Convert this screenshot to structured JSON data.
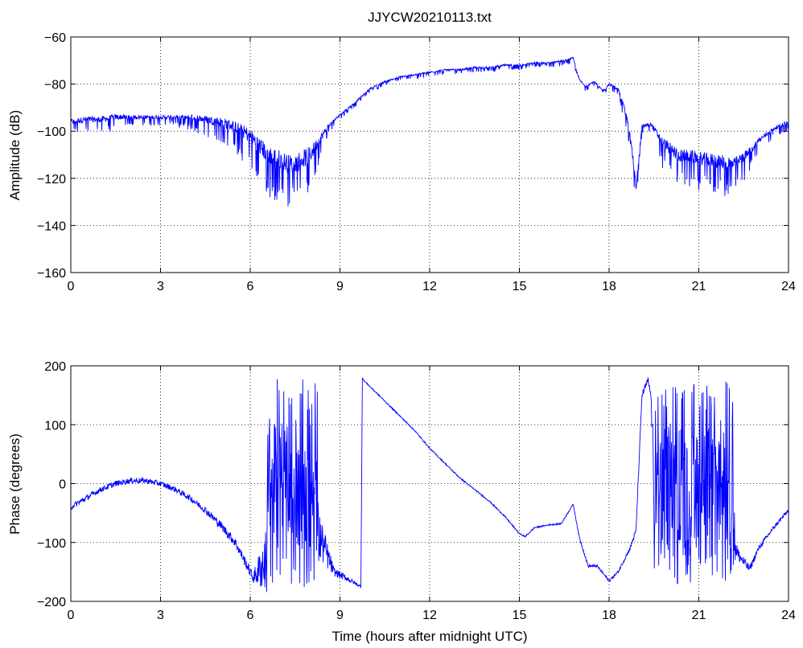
{
  "figure": {
    "title": "JJYCW20210113.txt",
    "line_color": "#0000ff",
    "grid": true,
    "grid_style": "dotted"
  },
  "chart_data": [
    {
      "type": "line",
      "id": "amplitude",
      "title": "JJYCW20210113.txt",
      "xlabel": "",
      "ylabel": "Amplitude (dB)",
      "xlim": [
        0,
        24
      ],
      "ylim": [
        -160,
        -60
      ],
      "xticks": [
        0,
        3,
        6,
        9,
        12,
        15,
        18,
        21,
        24
      ],
      "yticks": [
        -160,
        -140,
        -120,
        -100,
        -80,
        -60
      ],
      "ytick_labels": [
        "−160",
        "−140",
        "−120",
        "−100",
        "−80",
        "−60"
      ],
      "grid": true,
      "series": [
        {
          "color": "#0000ff",
          "x": [
            0,
            0.5,
            1,
            1.5,
            2,
            2.5,
            3,
            3.5,
            4,
            4.5,
            5,
            5.5,
            6,
            6.3,
            6.6,
            7,
            7.3,
            7.6,
            8,
            8.3,
            8.6,
            9,
            9.5,
            10,
            10.5,
            11,
            11.5,
            12,
            12.5,
            13,
            13.5,
            14,
            14.5,
            15,
            15.5,
            16,
            16.5,
            16.8,
            17,
            17.2,
            17.5,
            17.8,
            18,
            18.3,
            18.5,
            18.7,
            18.9,
            19.1,
            19.4,
            19.8,
            20.3,
            20.8,
            21.3,
            21.8,
            22.2,
            22.6,
            23,
            23.5,
            24
          ],
          "y": [
            -96,
            -95,
            -95,
            -94,
            -94,
            -94,
            -94,
            -94,
            -94,
            -95,
            -96,
            -98,
            -102,
            -106,
            -110,
            -112,
            -114,
            -113,
            -110,
            -104,
            -98,
            -93,
            -88,
            -82,
            -79,
            -77,
            -76,
            -75,
            -74,
            -74,
            -73,
            -73,
            -72,
            -72,
            -71,
            -71,
            -70,
            -69,
            -78,
            -81,
            -79,
            -83,
            -80,
            -82,
            -90,
            -100,
            -124,
            -98,
            -97,
            -105,
            -110,
            -111,
            -112,
            -113,
            -114,
            -110,
            -104,
            -99,
            -96
          ],
          "noise": [
            3,
            3,
            3,
            3,
            2,
            2,
            2,
            2,
            3,
            4,
            5,
            6,
            8,
            9,
            10,
            10,
            10,
            10,
            9,
            5,
            2,
            1,
            1,
            1,
            1,
            1,
            1,
            1,
            1,
            1,
            1,
            1,
            1,
            1,
            1,
            1,
            1,
            1,
            1,
            1,
            1,
            1,
            1,
            2,
            3,
            4,
            4,
            2,
            2,
            6,
            7,
            7,
            7,
            8,
            7,
            5,
            3,
            2,
            2
          ]
        }
      ]
    },
    {
      "type": "line",
      "id": "phase",
      "title": "",
      "xlabel": "Time (hours after midnight UTC)",
      "ylabel": "Phase (degrees)",
      "xlim": [
        0,
        24
      ],
      "ylim": [
        -200,
        200
      ],
      "xticks": [
        0,
        3,
        6,
        9,
        12,
        15,
        18,
        21,
        24
      ],
      "yticks": [
        -200,
        -100,
        0,
        100,
        200
      ],
      "ytick_labels": [
        "−200",
        "−100",
        "0",
        "100",
        "200"
      ],
      "grid": true,
      "series": [
        {
          "color": "#0000ff",
          "x": [
            0,
            0.5,
            1,
            1.5,
            2,
            2.5,
            3,
            3.5,
            4,
            4.5,
            5,
            5.5,
            6,
            6.1,
            7,
            8,
            8.4,
            8.8,
            9.2,
            9.7,
            9.75,
            9.8,
            10,
            10.5,
            11,
            11.5,
            12,
            12.5,
            13,
            13.5,
            14,
            14.5,
            15,
            15.2,
            15.5,
            16,
            16.4,
            16.8,
            17,
            17.3,
            17.6,
            18,
            18.3,
            18.7,
            18.9,
            19.1,
            19.3,
            19.4,
            19.6,
            20,
            20.5,
            21,
            21.5,
            22,
            22.3,
            22.7,
            23,
            23.5,
            24
          ],
          "y": [
            -40,
            -25,
            -10,
            0,
            5,
            5,
            0,
            -10,
            -25,
            -45,
            -70,
            -100,
            -150,
            -160,
            -100,
            -60,
            -100,
            -150,
            -160,
            -175,
            180,
            175,
            165,
            140,
            115,
            90,
            60,
            35,
            10,
            -10,
            -30,
            -55,
            -85,
            -90,
            -75,
            -70,
            -68,
            -35,
            -90,
            -140,
            -140,
            -165,
            -150,
            -110,
            -80,
            150,
            175,
            150,
            -150,
            -60,
            -50,
            -60,
            -50,
            -40,
            -120,
            -145,
            -110,
            -75,
            -45
          ],
          "noise": [
            8,
            8,
            8,
            8,
            8,
            8,
            8,
            8,
            8,
            10,
            12,
            14,
            14,
            14,
            180,
            180,
            60,
            12,
            8,
            4,
            2,
            2,
            2,
            2,
            2,
            2,
            2,
            2,
            2,
            2,
            2,
            2,
            2,
            2,
            2,
            2,
            2,
            2,
            4,
            4,
            4,
            4,
            4,
            6,
            8,
            10,
            10,
            10,
            180,
            180,
            180,
            180,
            180,
            180,
            20,
            10,
            8,
            6,
            6
          ]
        }
      ]
    }
  ]
}
